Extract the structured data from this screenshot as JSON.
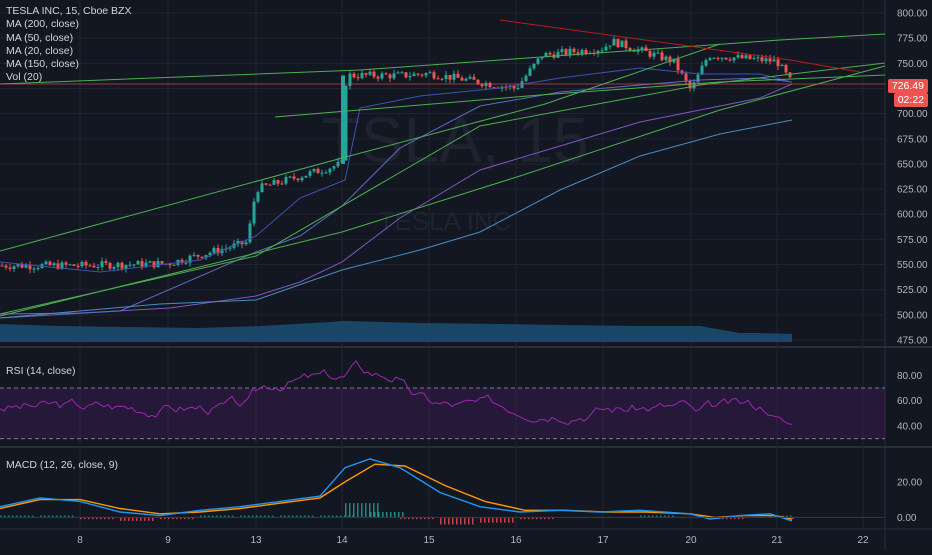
{
  "legend": {
    "title": "TESLA INC, 15, Cboe BZX",
    "ma200": "MA (200, close)",
    "ma50": "MA (50, close)",
    "ma20": "MA (20, close)",
    "ma150": "MA (150, close)",
    "vol": "Vol (20)"
  },
  "watermark": {
    "symbol": "TSLA, 15",
    "name": "TESLA INC"
  },
  "rsi_label": "RSI (14, close)",
  "macd_label": "MACD (12, 26, close, 9)",
  "last_price": "726.49",
  "countdown": "02:22",
  "colors": {
    "background": "#131722",
    "candle_up": "#26a69a",
    "candle_down": "#ef5350",
    "trendline": "#4caf50",
    "resistance": "#b71c1c",
    "ma_blue": "#2196f3",
    "ma_purple": "#7e57c2",
    "rsi": "#9c27b0",
    "macd_line": "#2196f3",
    "signal_line": "#ff9800"
  },
  "chart_data": {
    "type": "candlestick",
    "symbol": "TESLA INC",
    "interval": "15",
    "exchange": "Cboe BZX",
    "x_ticks": [
      "8",
      "9",
      "13",
      "14",
      "15",
      "16",
      "17",
      "20",
      "21",
      "22"
    ],
    "y_ticks": [
      "800.00",
      "775.00",
      "750.00",
      "725.00",
      "700.00",
      "675.00",
      "650.00",
      "625.00",
      "600.00",
      "575.00",
      "550.00",
      "525.00",
      "500.00",
      "475.00"
    ],
    "ylim": [
      475,
      805
    ],
    "path_keypoints": [
      {
        "day": "8",
        "price": 549
      },
      {
        "day": "9",
        "price": 551
      },
      {
        "day": "9.9",
        "price": 572
      },
      {
        "day": "13",
        "price": 625
      },
      {
        "day": "14",
        "price": 650
      },
      {
        "day": "14.05",
        "price": 738
      },
      {
        "day": "14.7",
        "price": 738
      },
      {
        "day": "15",
        "price": 740
      },
      {
        "day": "16",
        "price": 725
      },
      {
        "day": "16.3",
        "price": 758
      },
      {
        "day": "17",
        "price": 765
      },
      {
        "day": "17.1",
        "price": 772
      },
      {
        "day": "17.8",
        "price": 752
      },
      {
        "day": "20",
        "price": 723
      },
      {
        "day": "20.2",
        "price": 758
      },
      {
        "day": "21",
        "price": 752
      },
      {
        "day": "21.2",
        "price": 726.49
      }
    ],
    "rsi": {
      "ylim": [
        25,
        100
      ],
      "y_ticks": [
        "80.00",
        "60.00",
        "40.00"
      ],
      "bands": [
        70,
        30
      ]
    },
    "macd": {
      "ylim": [
        -6,
        38
      ],
      "y_ticks": [
        "20.00",
        "0.00"
      ]
    }
  }
}
